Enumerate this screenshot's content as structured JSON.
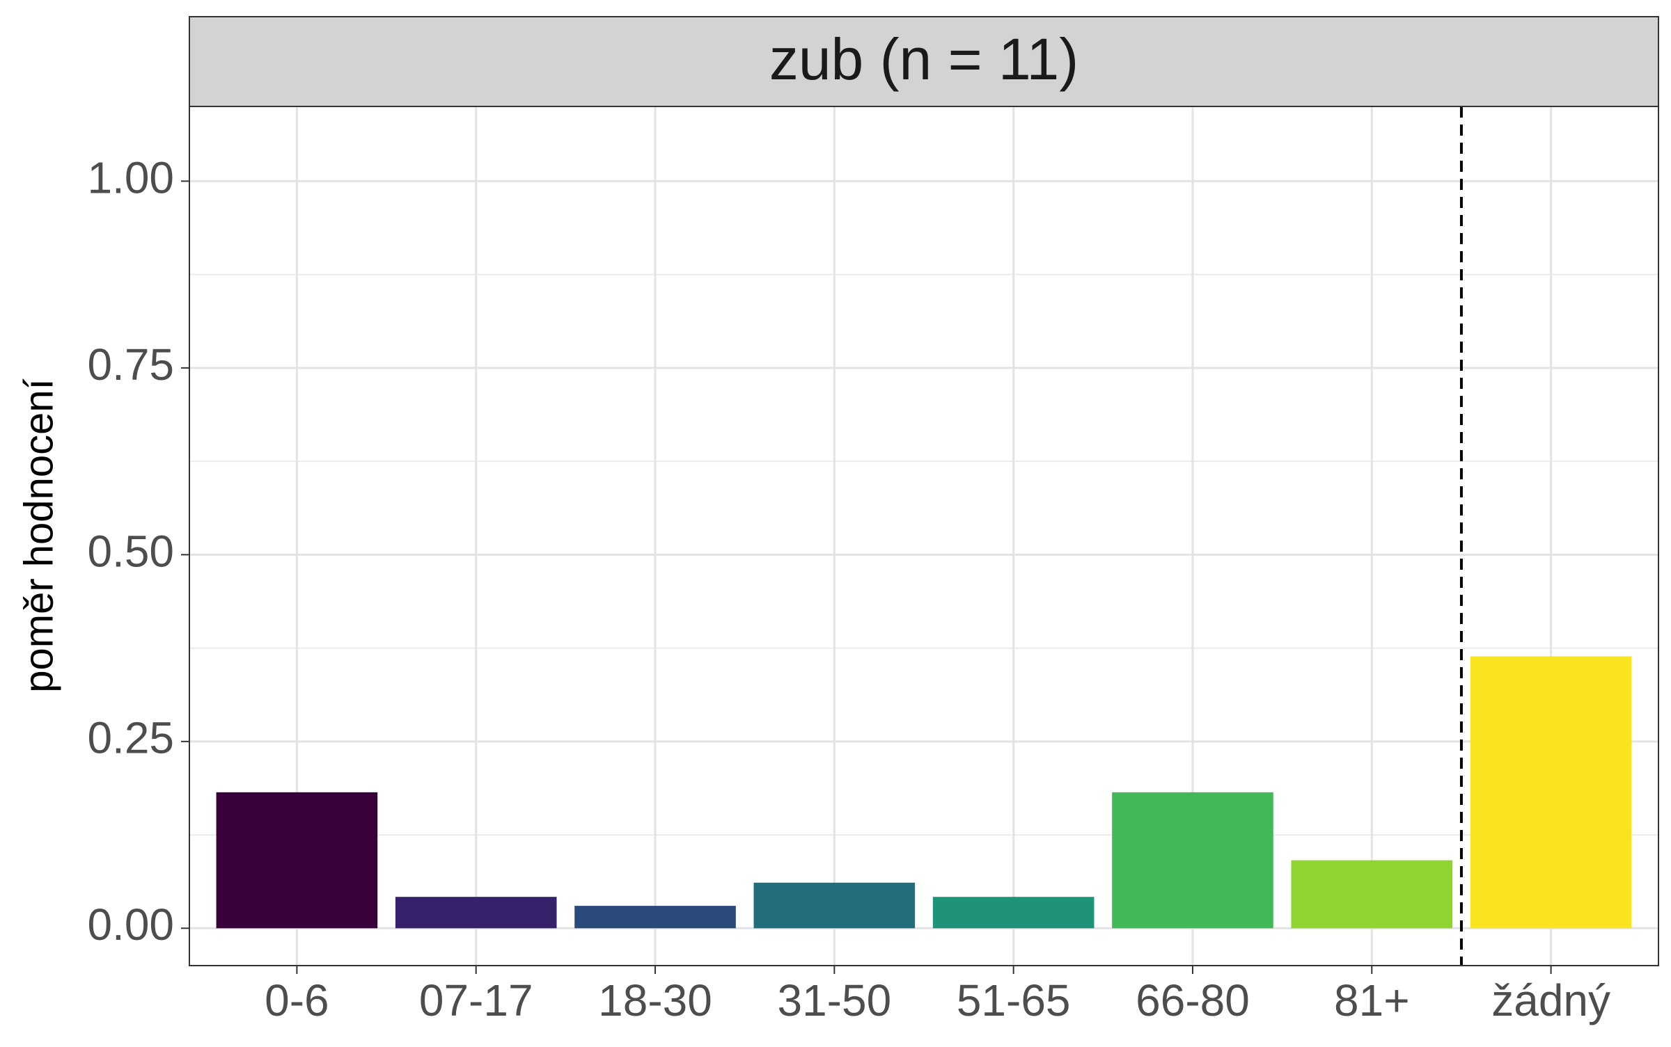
{
  "chart_data": {
    "type": "bar",
    "facet_title": "zub (n = 11)",
    "xlabel": "",
    "ylabel": "poměr hodnocení",
    "categories": [
      "0-6",
      "07-17",
      "18-30",
      "31-50",
      "51-65",
      "66-80",
      "81+",
      "žádný"
    ],
    "values": [
      0.182,
      0.042,
      0.03,
      0.061,
      0.042,
      0.182,
      0.091,
      0.364
    ],
    "colors": [
      "#3a003c",
      "#35226b",
      "#2a4a7c",
      "#216d7c",
      "#1f937a",
      "#42b858",
      "#8fd42f",
      "#fae31f"
    ],
    "ylim": [
      -0.05,
      1.1
    ],
    "yticks": [
      0.0,
      0.25,
      0.5,
      0.75,
      1.0
    ],
    "ytick_labels": [
      "0.00",
      "0.25",
      "0.50",
      "0.75",
      "1.00"
    ],
    "grid": true,
    "separator": {
      "style": "dashed",
      "between": [
        "81+",
        "žádný"
      ]
    },
    "strip_color": "#d3d3d3"
  }
}
